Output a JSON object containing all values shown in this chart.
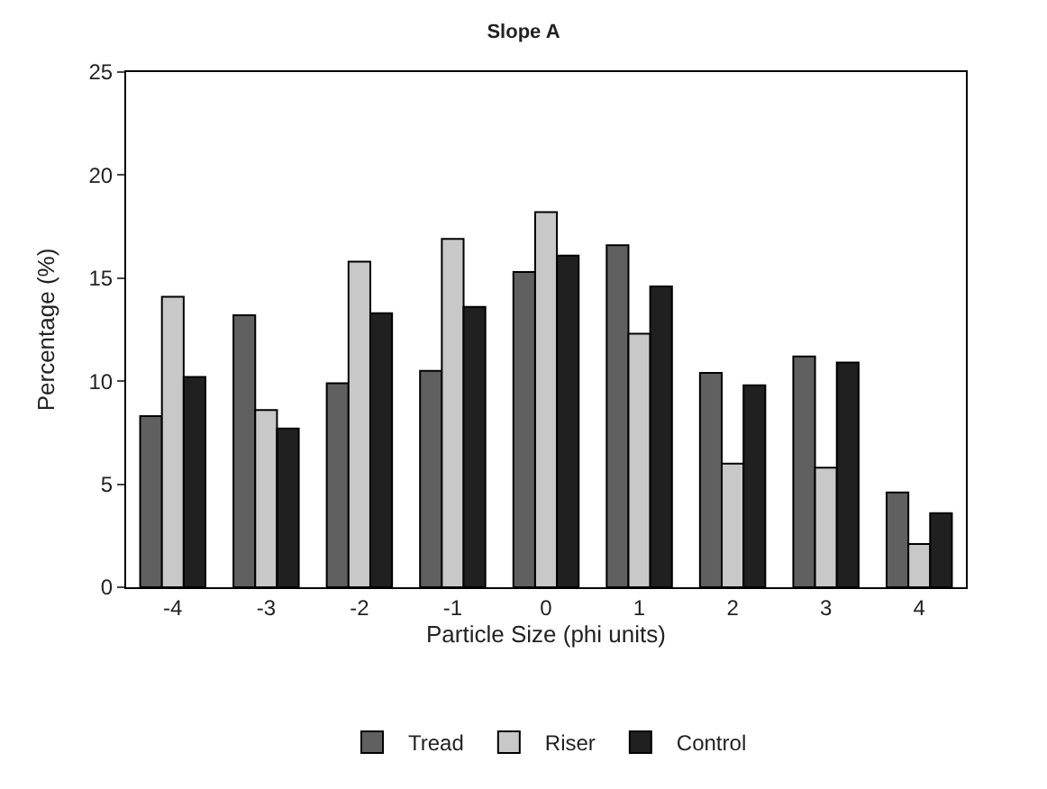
{
  "chart_data": {
    "type": "bar",
    "title": "Slope A",
    "xlabel": "Particle Size (phi units)",
    "ylabel": "Percentage (%)",
    "categories": [
      "-4",
      "-3",
      "-2",
      "-1",
      "0",
      "1",
      "2",
      "3",
      "4"
    ],
    "series": [
      {
        "name": "Tread",
        "color": "#606060",
        "values": [
          8.3,
          13.2,
          9.9,
          10.5,
          15.3,
          16.6,
          10.4,
          11.2,
          4.6
        ]
      },
      {
        "name": "Riser",
        "color": "#c8c8c8",
        "values": [
          14.1,
          8.6,
          15.8,
          16.9,
          18.2,
          12.3,
          6.0,
          5.8,
          2.1
        ]
      },
      {
        "name": "Control",
        "color": "#202020",
        "values": [
          10.2,
          7.7,
          13.3,
          13.6,
          16.1,
          14.6,
          9.8,
          10.9,
          3.6
        ]
      }
    ],
    "ylim": [
      0,
      25
    ],
    "yticks": [
      0,
      5,
      10,
      15,
      20,
      25
    ],
    "legend": "bottom"
  }
}
